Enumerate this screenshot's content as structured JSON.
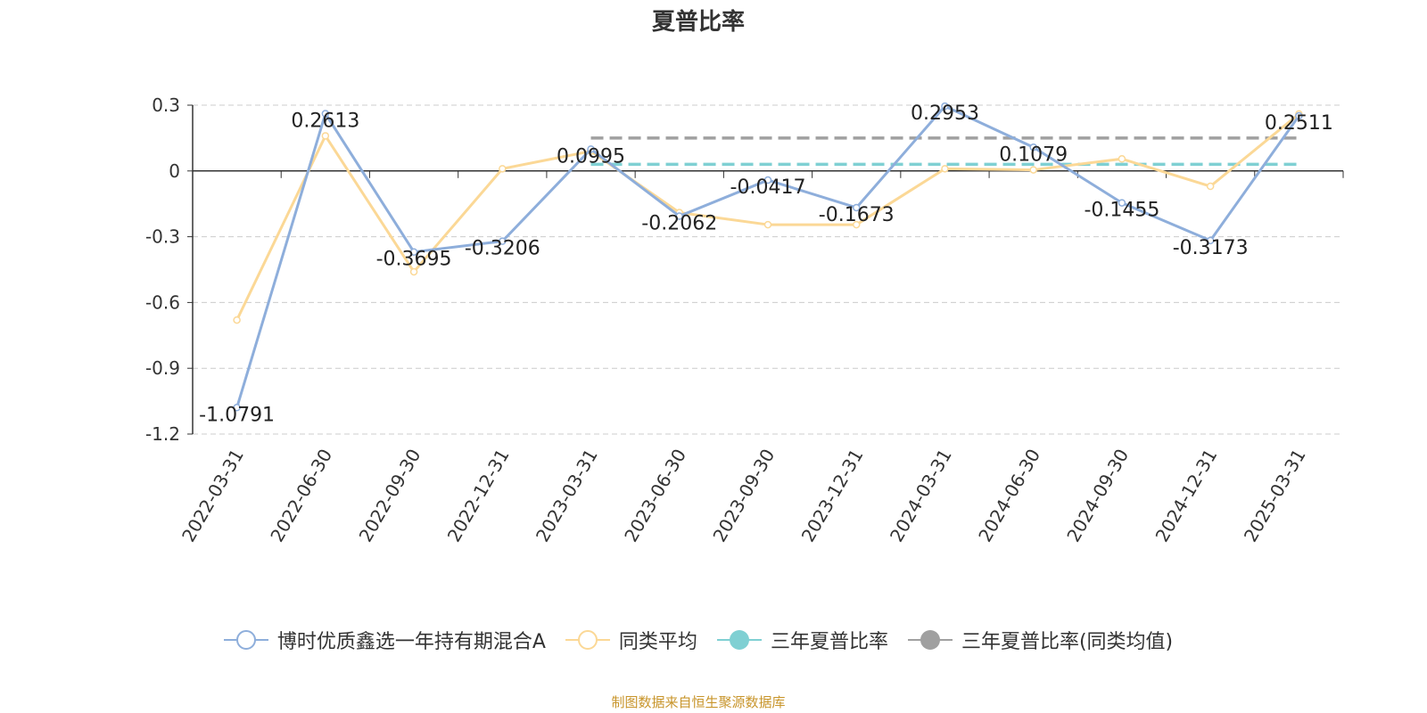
{
  "chart_data": {
    "type": "line",
    "title": "夏普比率",
    "categories": [
      "2022-03-31",
      "2022-06-30",
      "2022-09-30",
      "2022-12-31",
      "2023-03-31",
      "2023-06-30",
      "2023-09-30",
      "2023-12-31",
      "2024-03-31",
      "2024-06-30",
      "2024-09-30",
      "2024-12-31",
      "2025-03-31"
    ],
    "y_ticks": [
      "0.3",
      "0",
      "-0.3",
      "-0.6",
      "-0.9",
      "-1.2"
    ],
    "ylim": [
      -1.2,
      0.3
    ],
    "grid": "horizontal dashed",
    "legend_position": "bottom",
    "series": [
      {
        "name": "博时优质鑫选一年持有期混合A",
        "color": "#8eaedb",
        "values": [
          -1.0791,
          0.2613,
          -0.3695,
          -0.3206,
          0.0995,
          -0.2062,
          -0.0417,
          -0.1673,
          0.2953,
          0.1079,
          -0.1455,
          -0.3173,
          0.2511
        ],
        "labels": [
          "-1.0791",
          "0.2613",
          "-0.3695",
          "-0.3206",
          "0.0995",
          "-0.2062",
          "-0.0417",
          "-0.1673",
          "0.2953",
          "0.1079",
          "-0.1455",
          "-0.3173",
          "0.2511"
        ]
      },
      {
        "name": "同类平均",
        "color": "#fbd896",
        "values": [
          -0.68,
          0.16,
          -0.46,
          0.01,
          0.09,
          -0.19,
          -0.245,
          -0.245,
          0.01,
          0.005,
          0.055,
          -0.07,
          0.26
        ]
      }
    ],
    "reference_lines": [
      {
        "name": "三年夏普比率",
        "color": "#7fd0d3",
        "value": 0.03
      },
      {
        "name": "三年夏普比率(同类均值)",
        "color": "#a0a0a0",
        "value": 0.15
      }
    ]
  },
  "footer": {
    "text": "制图数据来自恒生聚源数据库",
    "color": "#c8952b"
  }
}
